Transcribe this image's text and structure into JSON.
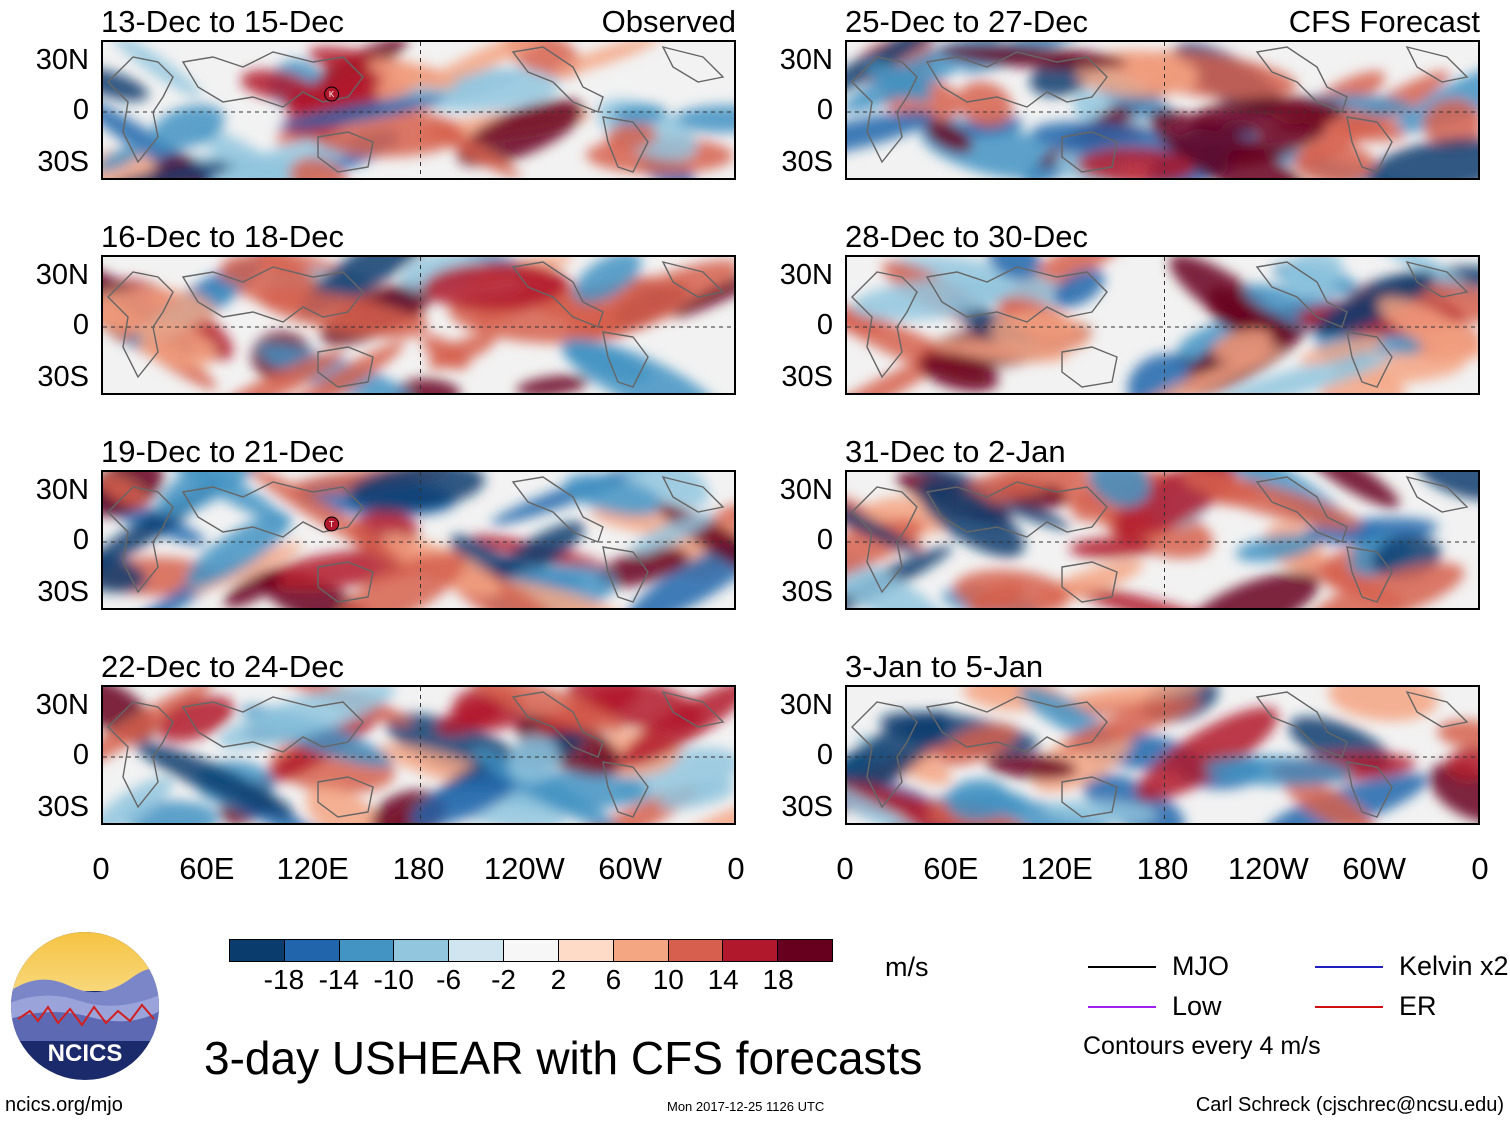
{
  "panels": [
    {
      "title": "13-Dec to 15-Dec",
      "tag": "Observed",
      "column": "observed",
      "marker": "K"
    },
    {
      "title": "16-Dec to 18-Dec",
      "tag": "",
      "column": "observed",
      "marker": ""
    },
    {
      "title": "19-Dec to 21-Dec",
      "tag": "",
      "column": "observed",
      "marker": "T"
    },
    {
      "title": "22-Dec to 24-Dec",
      "tag": "",
      "column": "observed",
      "marker": ""
    },
    {
      "title": "25-Dec to 27-Dec",
      "tag": "CFS Forecast",
      "column": "forecast",
      "marker": ""
    },
    {
      "title": "28-Dec to 30-Dec",
      "tag": "",
      "column": "forecast",
      "marker": ""
    },
    {
      "title": "31-Dec to 2-Jan",
      "tag": "",
      "column": "forecast",
      "marker": ""
    },
    {
      "title": "3-Jan to 5-Jan",
      "tag": "",
      "column": "forecast",
      "marker": ""
    }
  ],
  "axes": {
    "lat_labels": [
      "30N",
      "0",
      "30S"
    ],
    "lon_labels": [
      "0",
      "60E",
      "120E",
      "180",
      "120W",
      "60W",
      "0"
    ]
  },
  "colorbar": {
    "colors": [
      "#0b3c6e",
      "#2166ac",
      "#4393c3",
      "#92c5de",
      "#d1e5f0",
      "#f7f7f7",
      "#fddbc7",
      "#f4a582",
      "#d6604d",
      "#b2182b",
      "#67001f"
    ],
    "ticks": [
      "-18",
      "-14",
      "-10",
      "-6",
      "-2",
      "2",
      "6",
      "10",
      "14",
      "18"
    ],
    "units": "m/s"
  },
  "legend": {
    "items": [
      {
        "label": "MJO",
        "color": "#000000"
      },
      {
        "label": "Low",
        "color": "#a020f0"
      },
      {
        "label": "Kelvin x2",
        "color": "#2020c0"
      },
      {
        "label": "ER",
        "color": "#d01010"
      }
    ],
    "contour_note": "Contours every 4 m/s"
  },
  "title": "3-day USHEAR with CFS forecasts",
  "logo_text": "NCICS",
  "footer": {
    "url": "ncics.org/mjo",
    "timestamp": "Mon 2017-12-25 1126 UTC",
    "credit": "Carl Schreck (cjschrec@ncsu.edu)"
  }
}
